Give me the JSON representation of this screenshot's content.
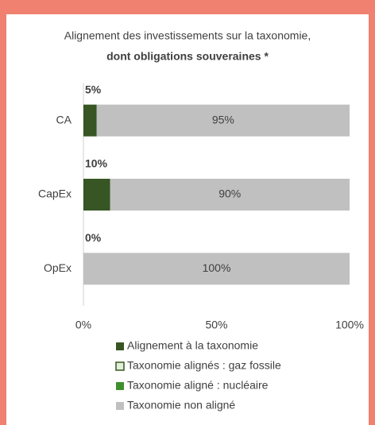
{
  "chart_data": {
    "type": "stacked_barh",
    "title": "Alignement des investissements sur la taxonomie,",
    "subtitle": "dont obligations souveraines *",
    "categories": [
      "CA",
      "CapEx",
      "OpEx"
    ],
    "series": [
      {
        "name": "Alignement à la taxonomie",
        "color": "#375623",
        "values": [
          5,
          10,
          0
        ],
        "value_labels": [
          "5%",
          "10%",
          "0%"
        ]
      },
      {
        "name": "Taxonomie alignés : gaz fossile",
        "color": "#e2efda",
        "values": [
          0,
          0,
          0
        ]
      },
      {
        "name": "Taxonomie aligné : nucléaire",
        "color": "#3f8f2f",
        "values": [
          0,
          0,
          0
        ]
      },
      {
        "name": "Taxonomie non aligné",
        "color": "#c0c0c0",
        "values": [
          95,
          90,
          100
        ],
        "value_labels": [
          "95%",
          "90%",
          "100%"
        ]
      }
    ],
    "xlim": [
      0,
      100
    ],
    "xticks": [
      {
        "value": 0,
        "label": "0%"
      },
      {
        "value": 50,
        "label": "50%"
      },
      {
        "value": 100,
        "label": "100%"
      }
    ]
  }
}
